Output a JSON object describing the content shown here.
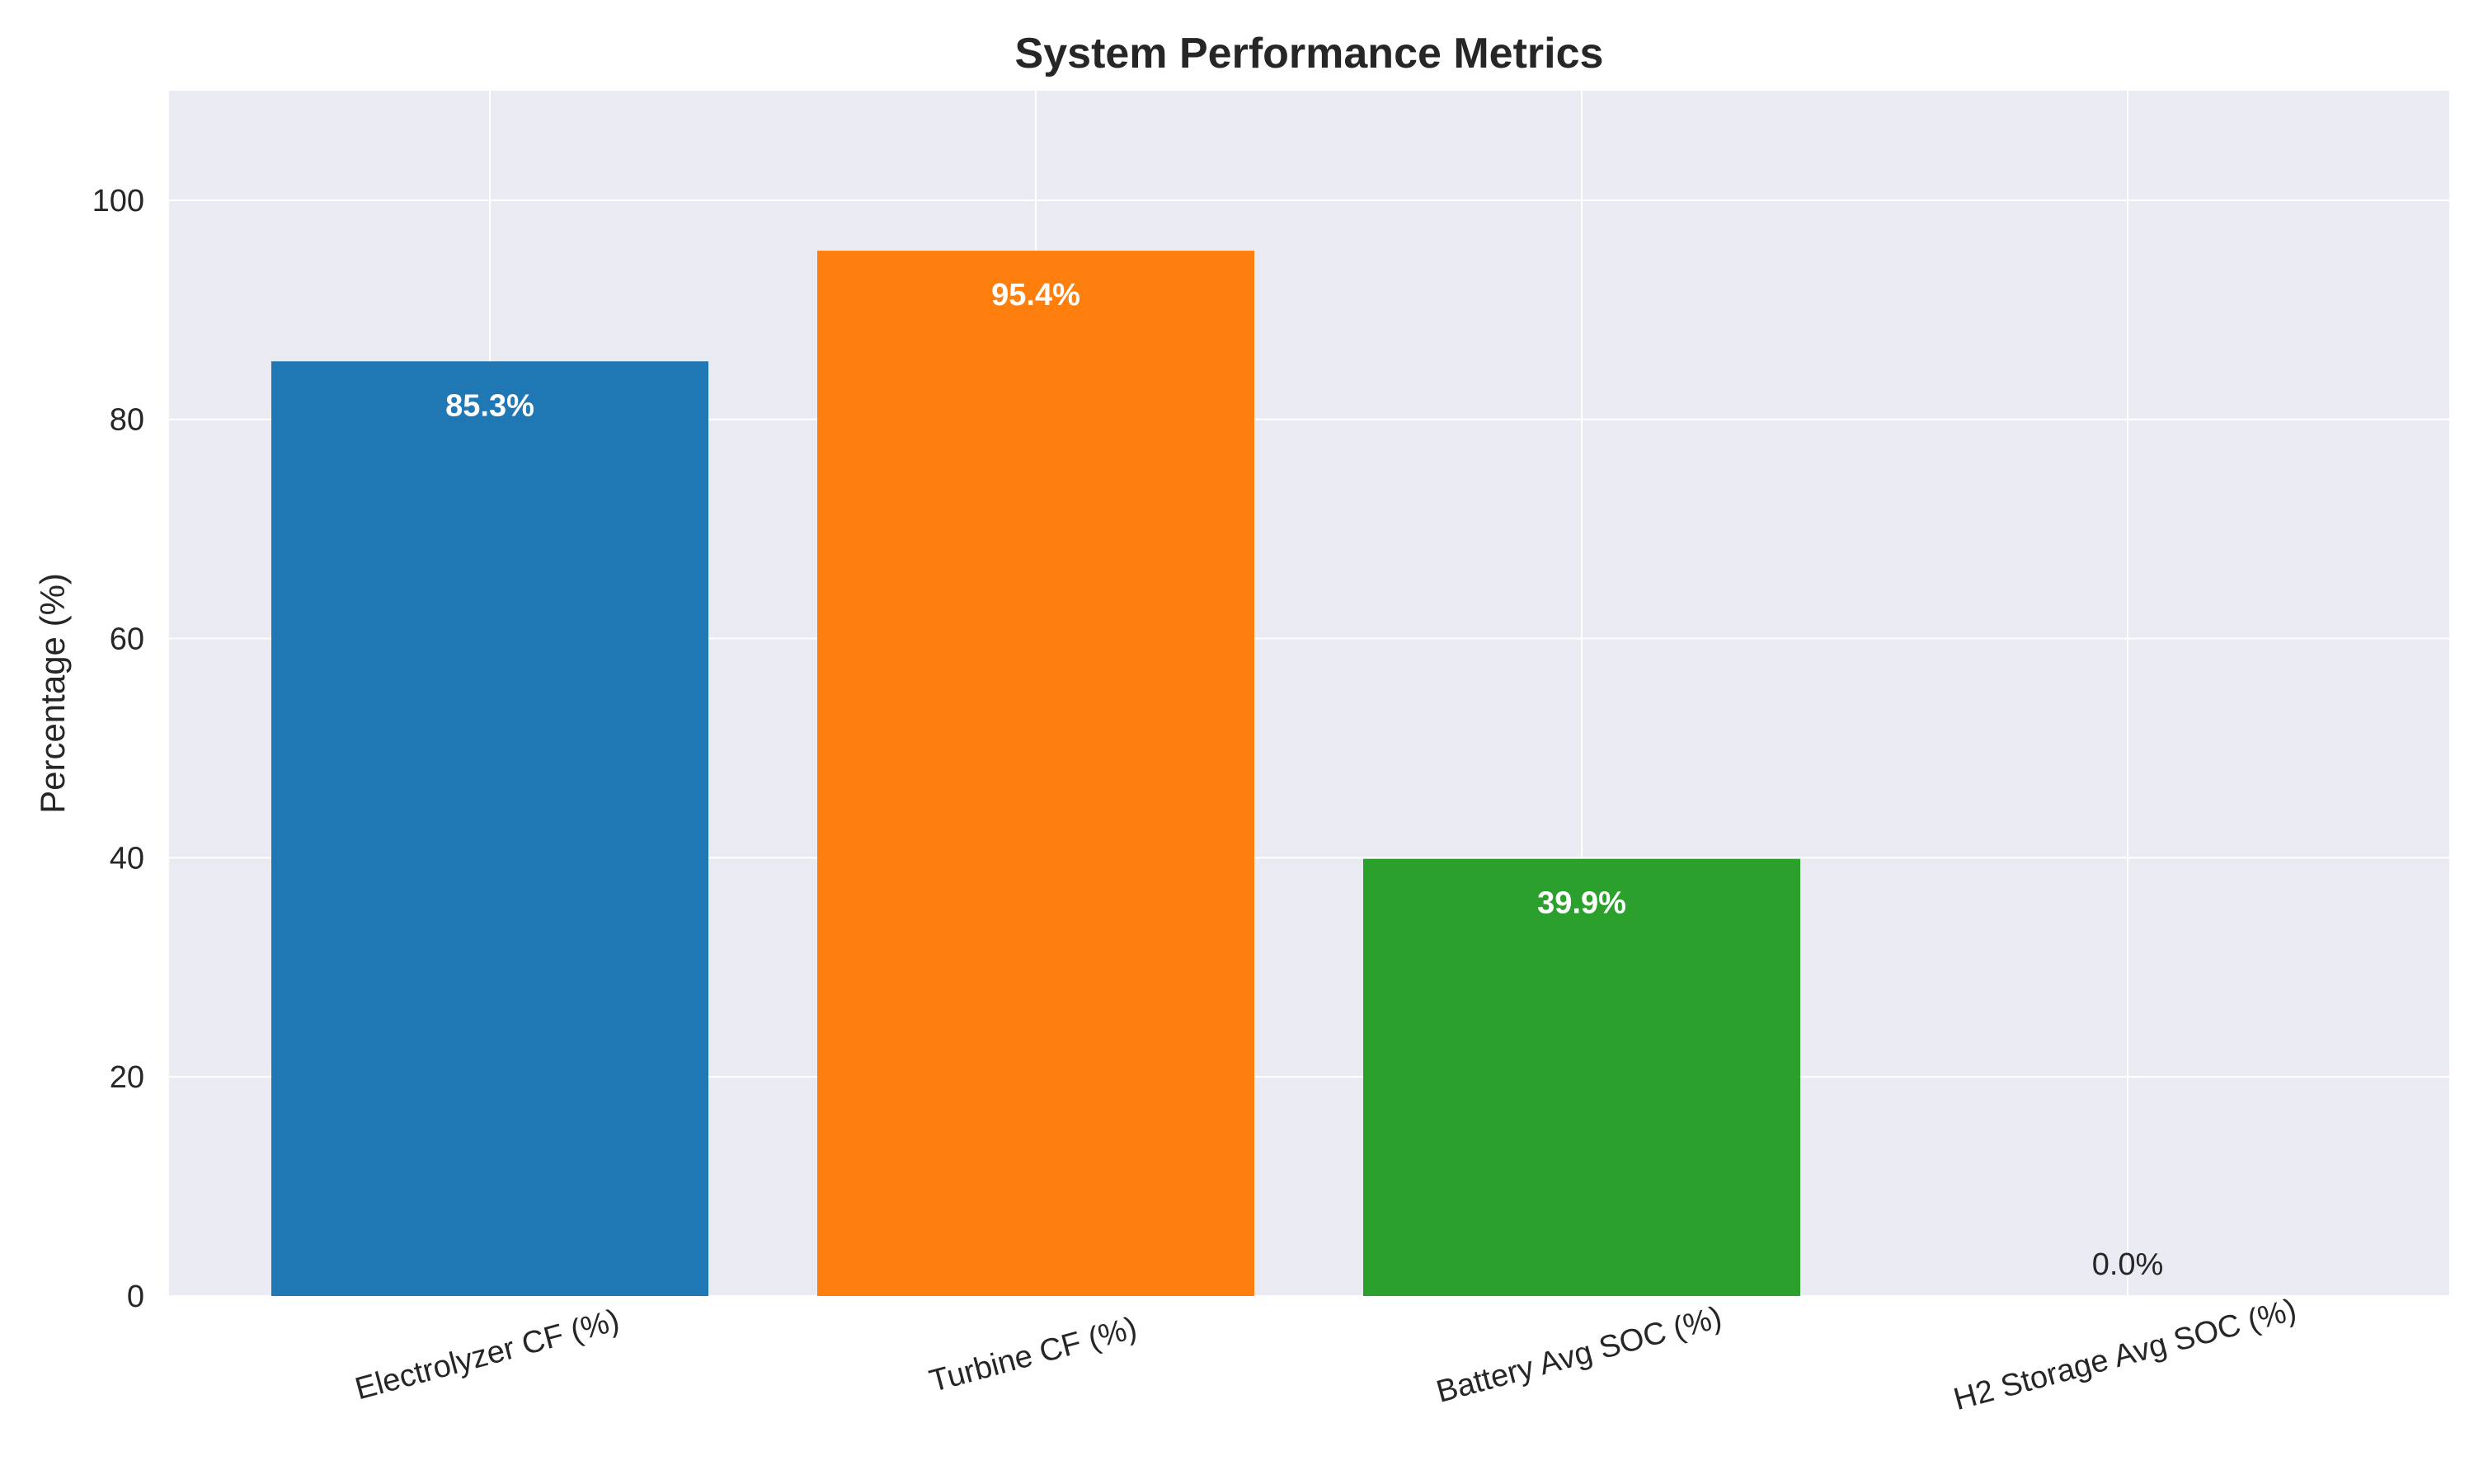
{
  "chart_data": {
    "type": "bar",
    "title": "System Performance Metrics",
    "xlabel": "",
    "ylabel": "Percentage (%)",
    "ylim": [
      0,
      110
    ],
    "yticks": [
      0,
      20,
      40,
      60,
      80,
      100
    ],
    "ytick_labels": [
      "0",
      "20",
      "40",
      "60",
      "80",
      "100"
    ],
    "grid": true,
    "legend": "none",
    "categories": [
      "Electrolyzer CF (%)",
      "Turbine CF (%)",
      "Battery Avg SOC (%)",
      "H2 Storage Avg SOC (%)"
    ],
    "values": [
      85.3,
      95.4,
      39.9,
      0.0
    ],
    "value_labels": [
      "85.3%",
      "95.4%",
      "39.9%",
      "0.0%"
    ],
    "colors": [
      "#1f77b4",
      "#ff7f0e",
      "#2ca02c",
      "#d62728"
    ],
    "plot_background": "#eaeaf2",
    "grid_color": "#ffffff"
  }
}
